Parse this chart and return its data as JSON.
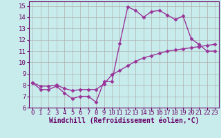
{
  "title": "",
  "xlabel": "Windchill (Refroidissement éolien,°C)",
  "ylabel": "",
  "bg_color": "#c8ecec",
  "grid_color": "#b0b0b0",
  "line_color": "#993399",
  "marker": "D",
  "markersize": 2.5,
  "linewidth": 1.0,
  "xlim": [
    -0.5,
    23.5
  ],
  "ylim": [
    6.0,
    15.4
  ],
  "yticks": [
    6,
    7,
    8,
    9,
    10,
    11,
    12,
    13,
    14,
    15
  ],
  "xticks": [
    0,
    1,
    2,
    3,
    4,
    5,
    6,
    7,
    8,
    9,
    10,
    11,
    12,
    13,
    14,
    15,
    16,
    17,
    18,
    19,
    20,
    21,
    22,
    23
  ],
  "line1_x": [
    0,
    1,
    2,
    3,
    4,
    5,
    6,
    7,
    8,
    9,
    10,
    11,
    12,
    13,
    14,
    15,
    16,
    17,
    18,
    19,
    20,
    21,
    22,
    23
  ],
  "line1_y": [
    8.2,
    7.6,
    7.6,
    7.9,
    7.3,
    6.8,
    7.0,
    7.0,
    6.5,
    8.3,
    8.3,
    11.7,
    14.9,
    14.6,
    14.0,
    14.5,
    14.6,
    14.2,
    13.8,
    14.1,
    12.1,
    11.6,
    11.0,
    11.0
  ],
  "line2_x": [
    0,
    1,
    2,
    3,
    4,
    5,
    6,
    7,
    8,
    9,
    10,
    11,
    12,
    13,
    14,
    15,
    16,
    17,
    18,
    19,
    20,
    21,
    22,
    23
  ],
  "line2_y": [
    8.2,
    7.9,
    7.9,
    8.0,
    7.7,
    7.5,
    7.6,
    7.6,
    7.6,
    8.1,
    8.9,
    9.3,
    9.7,
    10.1,
    10.4,
    10.6,
    10.8,
    11.0,
    11.1,
    11.2,
    11.3,
    11.4,
    11.5,
    11.6
  ],
  "tick_fontsize": 6.5,
  "xlabel_fontsize": 7.0,
  "label_color": "#660066",
  "spine_color": "#660066"
}
